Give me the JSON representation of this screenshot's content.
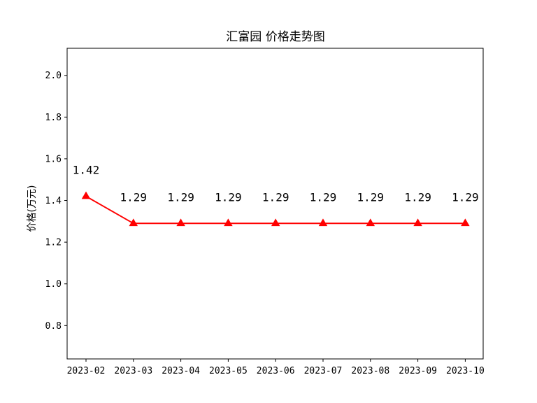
{
  "chart_data": {
    "type": "line",
    "title": "汇富园 价格走势图",
    "xlabel": "",
    "ylabel": "价格(万元)",
    "categories": [
      "2023-02",
      "2023-03",
      "2023-04",
      "2023-05",
      "2023-06",
      "2023-07",
      "2023-08",
      "2023-09",
      "2023-10"
    ],
    "series": [
      {
        "values": [
          1.42,
          1.29,
          1.29,
          1.29,
          1.29,
          1.29,
          1.29,
          1.29,
          1.29
        ],
        "color": "#ff0000",
        "marker": "triangle-up"
      }
    ],
    "data_labels": [
      "1.42",
      "1.29",
      "1.29",
      "1.29",
      "1.29",
      "1.29",
      "1.29",
      "1.29",
      "1.29"
    ],
    "ylim": [
      0.64,
      2.13
    ],
    "yticks": [
      0.8,
      1.0,
      1.2,
      1.4,
      1.6,
      1.8,
      2.0
    ],
    "ytick_labels": [
      "0.8",
      "1.0",
      "1.2",
      "1.4",
      "1.6",
      "1.8",
      "2.0"
    ],
    "grid": false,
    "legend": "none"
  }
}
